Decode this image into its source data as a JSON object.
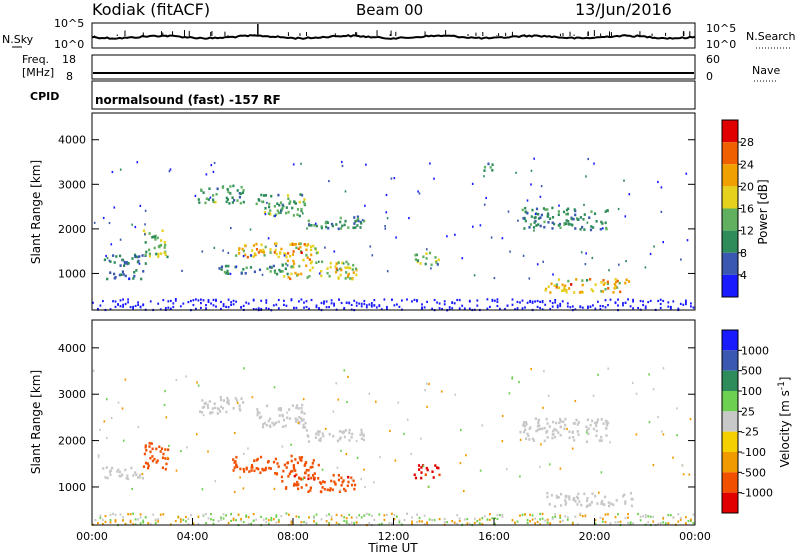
{
  "header": {
    "station": "Kodiak (fitACF)",
    "beam": "Beam 00",
    "date": "13/Jun/2016"
  },
  "panels": {
    "nsky": {
      "left_label": "N.Sky",
      "right_label": "N.Search",
      "left_ticks": [
        "10^5",
        "10^0"
      ],
      "right_ticks": [
        "10^5",
        "10^0"
      ]
    },
    "freq": {
      "left_label_1": "Freq.",
      "left_label_2": "[MHz]",
      "right_label": "Nave",
      "left_ticks": [
        "18",
        "8"
      ],
      "right_ticks": [
        "60",
        "0"
      ]
    },
    "cpid": {
      "label": "CPID",
      "text": "normalsound (fast) -157 RF"
    }
  },
  "colors": {
    "power_scale": [
      "#1a1aff",
      "#3a58b0",
      "#2e8c5a",
      "#60b060",
      "#e6d21e",
      "#f0a000",
      "#f06000",
      "#e00000"
    ],
    "velocity_scale": [
      "#e00000",
      "#f05000",
      "#f09a00",
      "#f5d000",
      "#c8c8c8",
      "#6ed050",
      "#2e8c5a",
      "#3a58b0",
      "#1a1aff"
    ]
  },
  "chart_data": [
    {
      "type": "heatmap",
      "title": "Power",
      "ylabel": "Slant Range [km]",
      "ylim": [
        180,
        4600
      ],
      "xlim_hours": [
        0,
        24
      ],
      "y_ticks": [
        "1000",
        "2000",
        "3000",
        "4000"
      ],
      "colorbar_label": "Power [dB]",
      "colorbar_ticks": [
        "4",
        "8",
        "12",
        "16",
        "20",
        "24",
        "28"
      ],
      "colorbar_range": [
        0,
        32
      ],
      "echo_regions": [
        {
          "t0": 0.3,
          "t1": 2.2,
          "r0": 1200,
          "r1": 1450,
          "level": 8
        },
        {
          "t0": 0.5,
          "t1": 2.0,
          "r0": 900,
          "r1": 1100,
          "level": 8
        },
        {
          "t0": 2.0,
          "t1": 3.0,
          "r0": 1400,
          "r1": 2000,
          "level": 14
        },
        {
          "t0": 4.2,
          "t1": 6.0,
          "r0": 2600,
          "r1": 3000,
          "level": 11
        },
        {
          "t0": 5.0,
          "t1": 7.8,
          "r0": 1000,
          "r1": 1200,
          "level": 10
        },
        {
          "t0": 5.5,
          "t1": 9.0,
          "r0": 1300,
          "r1": 1700,
          "level": 20
        },
        {
          "t0": 6.5,
          "t1": 8.5,
          "r0": 2300,
          "r1": 2800,
          "level": 12
        },
        {
          "t0": 7.5,
          "t1": 10.5,
          "r0": 900,
          "r1": 1300,
          "level": 18
        },
        {
          "t0": 8.5,
          "t1": 10.8,
          "r0": 2000,
          "r1": 2300,
          "level": 11
        },
        {
          "t0": 12.8,
          "t1": 13.8,
          "r0": 1200,
          "r1": 1500,
          "level": 14
        },
        {
          "t0": 15.5,
          "t1": 16.0,
          "r0": 3300,
          "r1": 3500,
          "level": 10
        },
        {
          "t0": 17.0,
          "t1": 20.5,
          "r0": 2000,
          "r1": 2500,
          "level": 9
        },
        {
          "t0": 18.0,
          "t1": 21.5,
          "r0": 600,
          "r1": 900,
          "level": 20
        }
      ]
    },
    {
      "type": "heatmap",
      "title": "Velocity",
      "ylabel": "Slant Range [km]",
      "xlabel": "Time UT",
      "ylim": [
        180,
        4600
      ],
      "xlim_hours": [
        0,
        24
      ],
      "y_ticks": [
        "1000",
        "2000",
        "3000",
        "4000"
      ],
      "x_ticks": [
        "00:00",
        "04:00",
        "08:00",
        "12:00",
        "16:00",
        "20:00",
        "00:00"
      ],
      "colorbar_label": "Velocity [m s",
      "colorbar_label_sup": "-1",
      "colorbar_label_end": "]",
      "colorbar_ticks": [
        "-1000",
        "-500",
        "-100",
        "-25",
        "25",
        "100",
        "500",
        "1000"
      ],
      "echo_regions": [
        {
          "t0": 0.3,
          "t1": 2.2,
          "r0": 1200,
          "r1": 1450,
          "level": 0
        },
        {
          "t0": 2.0,
          "t1": 3.0,
          "r0": 1400,
          "r1": 2000,
          "level": -300
        },
        {
          "t0": 4.2,
          "t1": 6.0,
          "r0": 2600,
          "r1": 3000,
          "level": 0
        },
        {
          "t0": 5.5,
          "t1": 9.0,
          "r0": 1300,
          "r1": 1700,
          "level": -200
        },
        {
          "t0": 6.5,
          "t1": 8.5,
          "r0": 2300,
          "r1": 2800,
          "level": 0
        },
        {
          "t0": 7.5,
          "t1": 10.5,
          "r0": 900,
          "r1": 1300,
          "level": -400
        },
        {
          "t0": 8.5,
          "t1": 10.8,
          "r0": 2000,
          "r1": 2300,
          "level": 0
        },
        {
          "t0": 12.8,
          "t1": 13.8,
          "r0": 1200,
          "r1": 1500,
          "level": -600
        },
        {
          "t0": 17.0,
          "t1": 20.5,
          "r0": 2000,
          "r1": 2500,
          "level": 0
        },
        {
          "t0": 18.0,
          "t1": 21.5,
          "r0": 600,
          "r1": 900,
          "level": 0
        }
      ]
    }
  ]
}
